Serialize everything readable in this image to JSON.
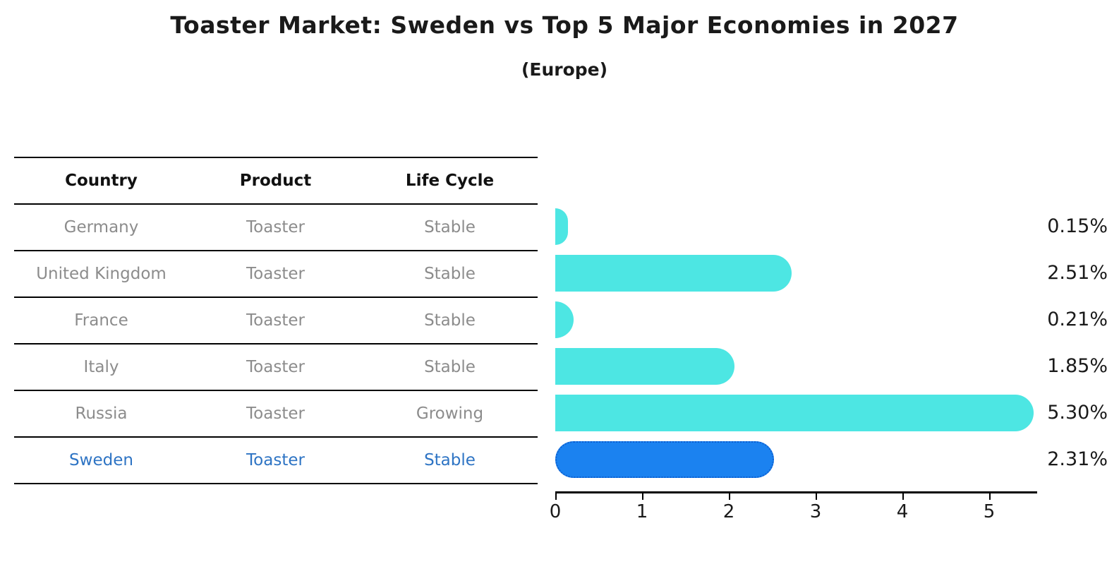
{
  "title": "Toaster Market: Sweden vs Top 5 Major Economies in 2027",
  "subtitle": "(Europe)",
  "table": {
    "headers": [
      "Country",
      "Product",
      "Life Cycle"
    ],
    "rows": [
      {
        "country": "Germany",
        "product": "Toaster",
        "life_cycle": "Stable",
        "highlight": false
      },
      {
        "country": "United Kingdom",
        "product": "Toaster",
        "life_cycle": "Stable",
        "highlight": false
      },
      {
        "country": "France",
        "product": "Toaster",
        "life_cycle": "Stable",
        "highlight": false
      },
      {
        "country": "Italy",
        "product": "Toaster",
        "life_cycle": "Stable",
        "highlight": false
      },
      {
        "country": "Russia",
        "product": "Toaster",
        "life_cycle": "Growing",
        "highlight": false
      },
      {
        "country": "Sweden",
        "product": "Toaster",
        "life_cycle": "Stable",
        "highlight": true
      }
    ]
  },
  "chart_data": {
    "type": "bar",
    "orientation": "horizontal",
    "title": "Toaster Market: Sweden vs Top 5 Major Economies in 2027 (Europe)",
    "categories": [
      "Germany",
      "United Kingdom",
      "France",
      "Italy",
      "Russia",
      "Sweden"
    ],
    "values": [
      0.15,
      2.51,
      0.21,
      1.85,
      5.3,
      2.31
    ],
    "value_labels": [
      "0.15%",
      "2.51%",
      "0.21%",
      "1.85%",
      "5.30%",
      "2.31%"
    ],
    "xlabel": "",
    "ylabel": "",
    "xlim": [
      0,
      5.55
    ],
    "x_ticks": [
      0,
      1,
      2,
      3,
      4,
      5
    ],
    "grid": false,
    "legend": false,
    "highlight_index": 5,
    "bar_color": "#4de6e3",
    "highlight_bar_color": "#1b82f0",
    "highlight_border_color": "#0d5fd0",
    "highlight_text_color": "#2e74c4"
  }
}
